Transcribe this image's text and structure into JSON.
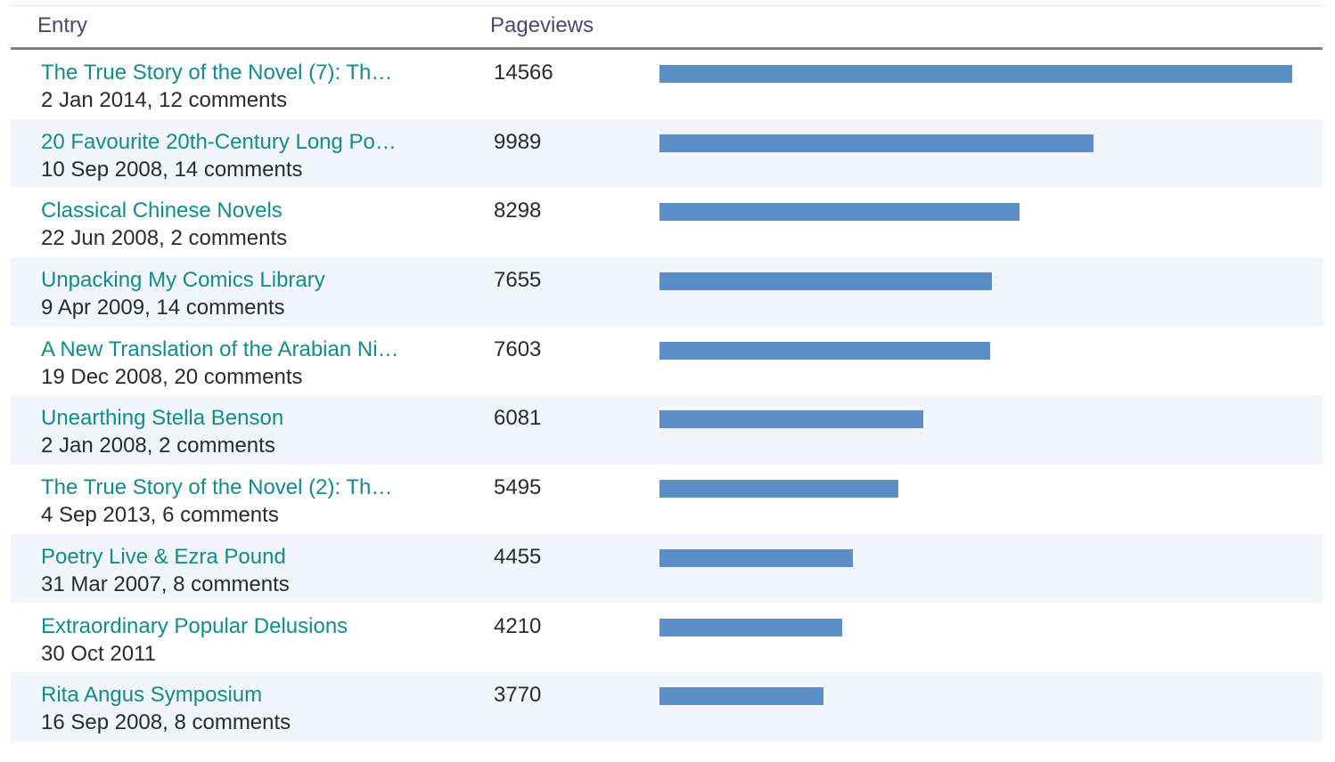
{
  "header": {
    "entry_label": "Entry",
    "pageviews_label": "Pageviews"
  },
  "colors": {
    "link": "#138b8b",
    "bar": "#5b8ec5",
    "row_alt": "#f2f5fa",
    "header_text": "#4a4a68"
  },
  "rows": [
    {
      "title": "The True Story of the Novel (7): Th…",
      "meta": "2 Jan 2014, 12 comments",
      "views": "14566",
      "views_num": 14566
    },
    {
      "title": "20 Favourite 20th-Century Long Po…",
      "meta": "10 Sep 2008, 14 comments",
      "views": "9989",
      "views_num": 9989
    },
    {
      "title": "Classical Chinese Novels",
      "meta": "22 Jun 2008, 2 comments",
      "views": "8298",
      "views_num": 8298
    },
    {
      "title": "Unpacking My Comics Library",
      "meta": "9 Apr 2009, 14 comments",
      "views": "7655",
      "views_num": 7655
    },
    {
      "title": "A New Translation of the Arabian Ni…",
      "meta": "19 Dec 2008, 20 comments",
      "views": "7603",
      "views_num": 7603
    },
    {
      "title": "Unearthing Stella Benson",
      "meta": "2 Jan 2008, 2 comments",
      "views": "6081",
      "views_num": 6081
    },
    {
      "title": "The True Story of the Novel (2): Th…",
      "meta": "4 Sep 2013, 6 comments",
      "views": "5495",
      "views_num": 5495
    },
    {
      "title": "Poetry Live & Ezra Pound",
      "meta": "31 Mar 2007, 8 comments",
      "views": "4455",
      "views_num": 4455
    },
    {
      "title": "Extraordinary Popular Delusions",
      "meta": "30 Oct 2011",
      "views": "4210",
      "views_num": 4210
    },
    {
      "title": "Rita Angus Symposium",
      "meta": "16 Sep 2008, 8 comments",
      "views": "3770",
      "views_num": 3770
    }
  ]
}
